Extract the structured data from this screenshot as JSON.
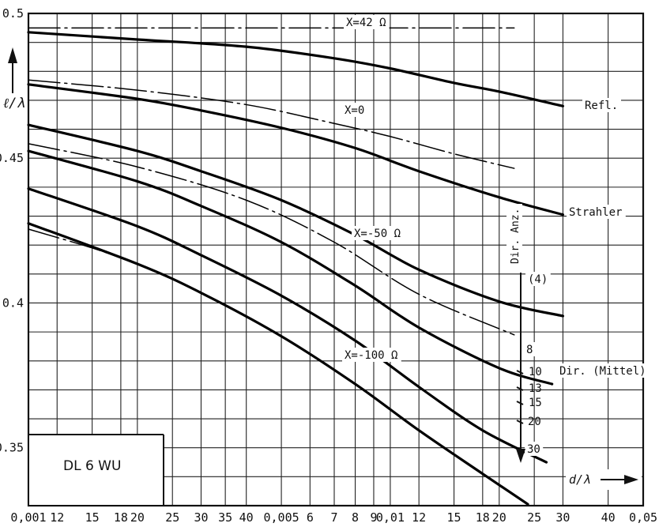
{
  "chart_data": {
    "type": "line",
    "title": "DL 6 WU",
    "xlabel": "d/λ",
    "ylabel": "ℓ/λ",
    "xscale": "log",
    "xlim": [
      0.001,
      0.05
    ],
    "ylim": [
      0.33,
      0.5
    ],
    "grid": true,
    "x_tick_labels": [
      "0,001",
      "12",
      "15",
      "18",
      "20",
      "25",
      "30",
      "35",
      "40",
      "0,005",
      "6",
      "7",
      "8",
      "9",
      "0,01",
      "12",
      "15",
      "18",
      "20",
      "25",
      "30",
      "40",
      "0,05"
    ],
    "y_tick_labels": [
      "0.5",
      "0.45",
      "0.4",
      "0.35"
    ],
    "series": [
      {
        "name": "Refl.",
        "style": "thick",
        "label_text": "Refl.",
        "points": [
          [
            0.001,
            0.4935
          ],
          [
            0.002,
            0.491
          ],
          [
            0.004,
            0.4885
          ],
          [
            0.007,
            0.4845
          ],
          [
            0.01,
            0.481
          ],
          [
            0.015,
            0.476
          ],
          [
            0.02,
            0.473
          ],
          [
            0.03,
            0.468
          ]
        ]
      },
      {
        "name": "X=42Ω",
        "style": "dashdot",
        "label_text": "X=42 Ω",
        "points": [
          [
            0.001,
            0.495
          ],
          [
            0.022,
            0.495
          ]
        ]
      },
      {
        "name": "Strahler",
        "style": "thick",
        "label_text": "Strahler",
        "points": [
          [
            0.001,
            0.4755
          ],
          [
            0.002,
            0.4705
          ],
          [
            0.003,
            0.4665
          ],
          [
            0.005,
            0.4605
          ],
          [
            0.008,
            0.4535
          ],
          [
            0.012,
            0.4455
          ],
          [
            0.02,
            0.4365
          ],
          [
            0.03,
            0.4305
          ]
        ]
      },
      {
        "name": "X=0",
        "style": "dashdot",
        "label_text": "X=0",
        "points": [
          [
            0.001,
            0.477
          ],
          [
            0.002,
            0.4735
          ],
          [
            0.004,
            0.4685
          ],
          [
            0.007,
            0.462
          ],
          [
            0.01,
            0.4575
          ],
          [
            0.015,
            0.4515
          ],
          [
            0.022,
            0.4465
          ]
        ]
      },
      {
        "name": "Dir. (4)",
        "style": "thick",
        "label_text": "(4)",
        "points": [
          [
            0.001,
            0.4615
          ],
          [
            0.002,
            0.4525
          ],
          [
            0.003,
            0.4455
          ],
          [
            0.005,
            0.4355
          ],
          [
            0.008,
            0.4235
          ],
          [
            0.012,
            0.4115
          ],
          [
            0.02,
            0.4005
          ],
          [
            0.03,
            0.3955
          ]
        ]
      },
      {
        "name": "X=-50Ω",
        "style": "dashdot",
        "label_text": "X=-50 Ω",
        "points": [
          [
            0.001,
            0.455
          ],
          [
            0.002,
            0.447
          ],
          [
            0.004,
            0.4355
          ],
          [
            0.007,
            0.421
          ],
          [
            0.012,
            0.403
          ],
          [
            0.022,
            0.389
          ]
        ]
      },
      {
        "name": "Dir. 8",
        "style": "thick",
        "label_text": "8",
        "points": [
          [
            0.001,
            0.4525
          ],
          [
            0.002,
            0.442
          ],
          [
            0.003,
            0.4335
          ],
          [
            0.005,
            0.421
          ],
          [
            0.008,
            0.406
          ],
          [
            0.012,
            0.3915
          ],
          [
            0.02,
            0.3775
          ],
          [
            0.028,
            0.372
          ]
        ]
      },
      {
        "name": "Dir. (Mittel)",
        "style": "thick",
        "label_text": "Dir. (Mittel)",
        "points": [
          [
            0.001,
            0.4395
          ],
          [
            0.002,
            0.4265
          ],
          [
            0.003,
            0.4165
          ],
          [
            0.005,
            0.4025
          ],
          [
            0.008,
            0.387
          ],
          [
            0.012,
            0.371
          ],
          [
            0.018,
            0.356
          ],
          [
            0.027,
            0.345
          ]
        ]
      },
      {
        "name": "Dir. 30",
        "style": "thick",
        "label_text": "30",
        "points": [
          [
            0.001,
            0.4275
          ],
          [
            0.002,
            0.4135
          ],
          [
            0.003,
            0.4035
          ],
          [
            0.005,
            0.3885
          ],
          [
            0.008,
            0.372
          ],
          [
            0.012,
            0.356
          ],
          [
            0.018,
            0.341
          ],
          [
            0.024,
            0.3305
          ]
        ]
      },
      {
        "name": "X=-100Ω",
        "style": "dashdot",
        "label_text": "X=-100 Ω",
        "points": [
          [
            0.001,
            0.4255
          ],
          [
            0.0015,
            0.419
          ],
          [
            0.002,
            0.4135
          ]
        ]
      }
    ],
    "side_label": "Dir. Anz.",
    "side_ticks": [
      "8",
      "10",
      "13",
      "15",
      "20",
      "30"
    ]
  }
}
